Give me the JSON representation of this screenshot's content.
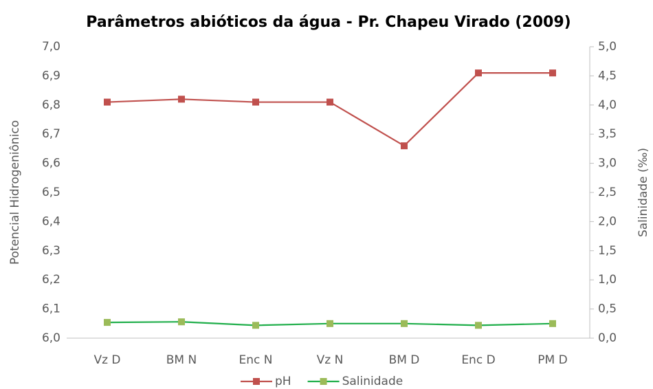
{
  "chart_data": {
    "type": "line",
    "title": "Parâmetros abióticos da água - Pr. Chapeu Virado (2009)",
    "y_label": "Potencial Hidrogeniônico",
    "y2_label": "Salinidade (‰)",
    "categories": [
      "Vz D",
      "BM N",
      "Enc N",
      "Vz N",
      "BM D",
      "Enc D",
      "PM D"
    ],
    "series": [
      {
        "name": "pH",
        "color": "#c0504d",
        "marker_color": "#c0504d",
        "values": [
          6.81,
          6.82,
          6.81,
          6.81,
          6.66,
          6.91,
          6.91
        ]
      },
      {
        "name": "Salinidade",
        "color": "#1fae4a",
        "marker_color": "#9bbb59",
        "axis": "y2",
        "values": [
          0.27,
          0.28,
          0.22,
          0.25,
          0.25,
          0.22,
          0.25
        ]
      }
    ],
    "ylim": [
      6.0,
      7.0
    ],
    "yticks": [
      {
        "value": 6.0,
        "label": "6,0"
      },
      {
        "value": 6.1,
        "label": "6,1"
      },
      {
        "value": 6.2,
        "label": "6,2"
      },
      {
        "value": 6.3,
        "label": "6,3"
      },
      {
        "value": 6.4,
        "label": "6,4"
      },
      {
        "value": 6.5,
        "label": "6,5"
      },
      {
        "value": 6.6,
        "label": "6,6"
      },
      {
        "value": 6.7,
        "label": "6,7"
      },
      {
        "value": 6.8,
        "label": "6,8"
      },
      {
        "value": 6.9,
        "label": "6,9"
      },
      {
        "value": 7.0,
        "label": "7,0"
      }
    ],
    "y2lim": [
      0,
      5
    ],
    "y2ticks": [
      {
        "value": 0,
        "label": "0,0"
      },
      {
        "value": 0.5,
        "label": "0,5"
      },
      {
        "value": 1,
        "label": "1,0"
      },
      {
        "value": 1.5,
        "label": "1,5"
      },
      {
        "value": 2,
        "label": "2,0"
      },
      {
        "value": 2.5,
        "label": "2,5"
      },
      {
        "value": 3,
        "label": "3,0"
      },
      {
        "value": 3.5,
        "label": "3,5"
      },
      {
        "value": 4,
        "label": "4,0"
      },
      {
        "value": 4.5,
        "label": "4,5"
      },
      {
        "value": 5,
        "label": "5,0"
      }
    ],
    "legend": "bottom"
  }
}
